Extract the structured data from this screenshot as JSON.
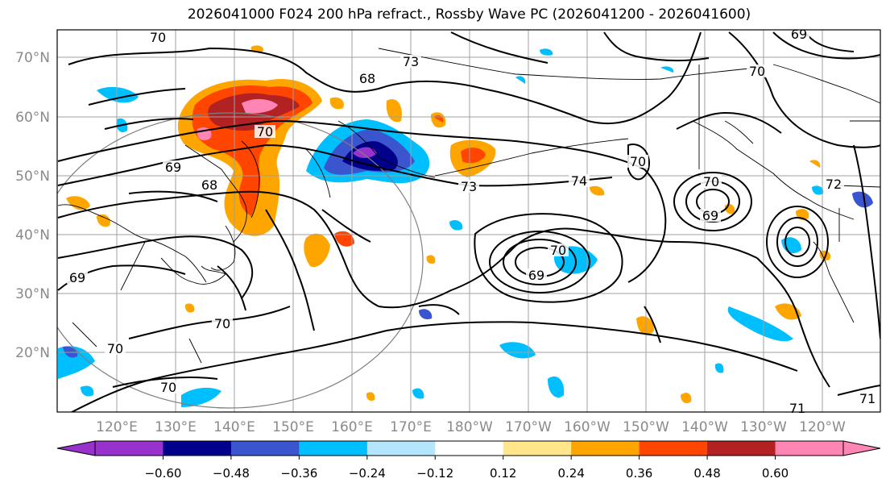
{
  "title": "2026041000 F024 200 hPa refract., Rossby Wave PC (2026041200 - 2026041600)",
  "lat_labels": [
    "70°N",
    "60°N",
    "50°N",
    "40°N",
    "30°N",
    "20°N"
  ],
  "lon_labels": [
    "120°E",
    "130°E",
    "140°E",
    "150°E",
    "160°E",
    "170°E",
    "180°W",
    "170°W",
    "160°W",
    "150°W",
    "140°W",
    "130°W",
    "120°W"
  ],
  "colorbar": {
    "colors": [
      "#9932cc",
      "#00008b",
      "#3b55cf",
      "#00bfff",
      "#b3e5fc",
      "#ffffff",
      "#ffe68a",
      "#ffa500",
      "#ff4500",
      "#b22222",
      "#ff85b4"
    ],
    "tick_labels": [
      "−0.60",
      "−0.48",
      "−0.36",
      "−0.24",
      "−0.12",
      "0.12",
      "0.24",
      "0.36",
      "0.48",
      "0.60"
    ]
  },
  "contour_labels": [
    {
      "text": "70"
    },
    {
      "text": "68"
    },
    {
      "text": "70"
    },
    {
      "text": "69"
    },
    {
      "text": "68"
    },
    {
      "text": "69"
    },
    {
      "text": "70"
    },
    {
      "text": "70"
    },
    {
      "text": "70"
    },
    {
      "text": "73"
    },
    {
      "text": "73"
    },
    {
      "text": "74"
    },
    {
      "text": "70"
    },
    {
      "text": "69"
    },
    {
      "text": "70"
    },
    {
      "text": "69"
    },
    {
      "text": "70"
    },
    {
      "text": "70"
    },
    {
      "text": "71"
    },
    {
      "text": "71"
    },
    {
      "text": "69"
    },
    {
      "text": "72"
    }
  ]
}
